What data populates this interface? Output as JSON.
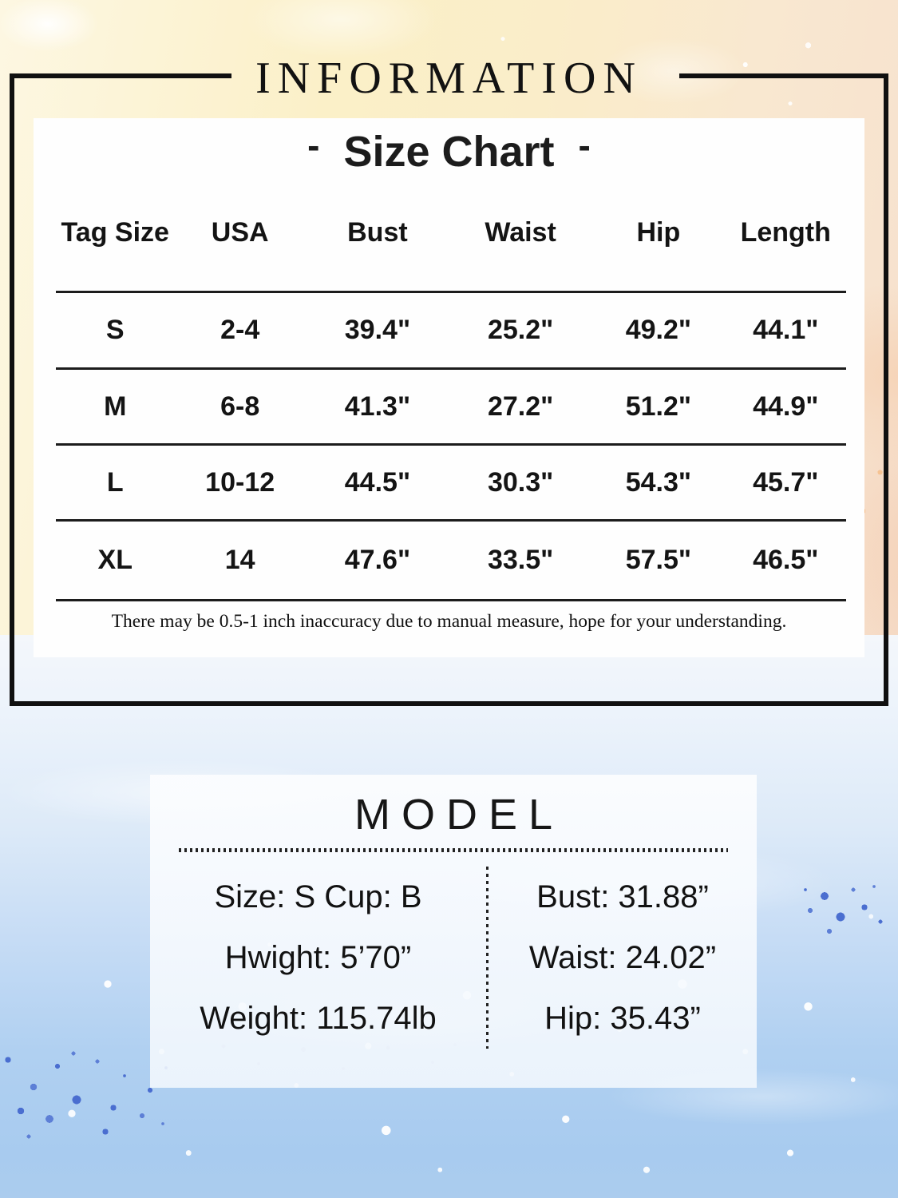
{
  "page": {
    "info_title": "INFORMATION",
    "size_chart_title": "Size Chart",
    "size_chart_dash": "-"
  },
  "size_table": {
    "headers": [
      "Tag Size",
      "USA",
      "Bust",
      "Waist",
      "Hip",
      "Length"
    ],
    "rows": [
      {
        "tag": "S",
        "usa": "2-4",
        "bust": "39.4\"",
        "waist": "25.2\"",
        "hip": "49.2\"",
        "length": "44.1\""
      },
      {
        "tag": "M",
        "usa": "6-8",
        "bust": "41.3\"",
        "waist": "27.2\"",
        "hip": "51.2\"",
        "length": "44.9\""
      },
      {
        "tag": "L",
        "usa": "10-12",
        "bust": "44.5\"",
        "waist": "30.3\"",
        "hip": "54.3\"",
        "length": "45.7\""
      },
      {
        "tag": "XL",
        "usa": "14",
        "bust": "47.6\"",
        "waist": "33.5\"",
        "hip": "57.5\"",
        "length": "46.5\""
      }
    ],
    "disclaimer": "There may be 0.5-1 inch inaccuracy due to manual measure, hope for your understanding."
  },
  "model": {
    "title": "MODEL",
    "left": [
      "Size: S Cup: B",
      "Hwight: 5’70”",
      "Weight: 115.74lb"
    ],
    "right": [
      "Bust: 31.88”",
      "Waist: 24.02”",
      "Hip: 35.43”"
    ]
  },
  "colors": {
    "ink": "#111111",
    "top_wash": "#fbf0c8",
    "peach_wash": "#f6e0ce",
    "bottom_wash": "#abccee",
    "splatter_blue": "#4a6ed0"
  }
}
